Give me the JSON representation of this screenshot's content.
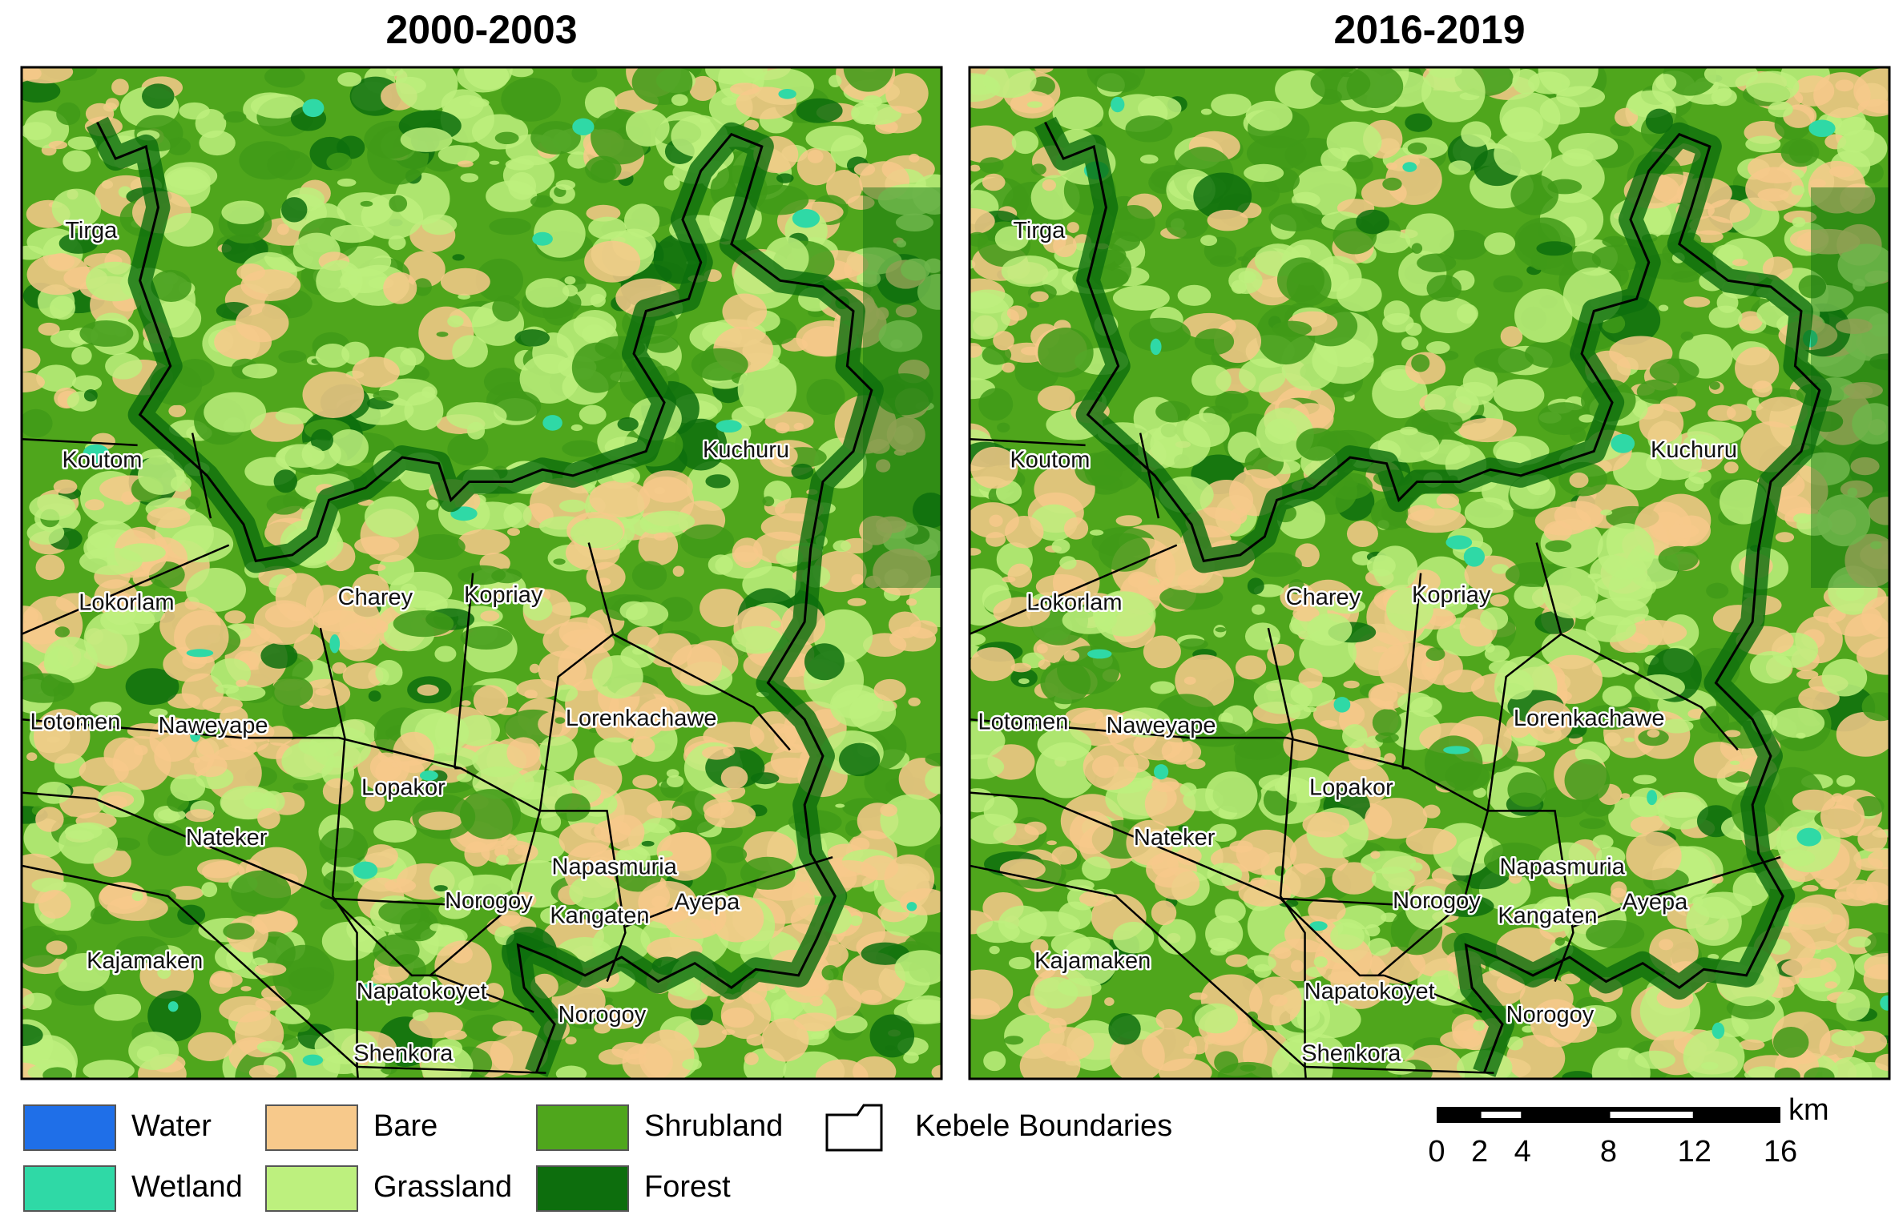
{
  "panels": [
    {
      "title": "2000-2003",
      "labels": [
        "Tirga",
        "Koutom",
        "Lokorlam",
        "Lotomen",
        "Naweyape",
        "Nateker",
        "Kajamaken",
        "Napatokoyet",
        "Shenkora",
        "Norogoy",
        "Norogoy",
        "Kangaten",
        "Napasmuria",
        "Ayepa",
        "Lopakor",
        "Lorenkachawe",
        "Charey",
        "Kopriay",
        "Kuchuru"
      ]
    },
    {
      "title": "2016-2019",
      "labels": [
        "Tirga",
        "Koutom",
        "Lokorlam",
        "Lotomen",
        "Naweyape",
        "Nateker",
        "Kajamaken",
        "Napatokoyet",
        "Shenkora",
        "Norogoy",
        "Norogoy",
        "Kangaten",
        "Napasmuria",
        "Ayepa",
        "Lopakor",
        "Lorenkachawe",
        "Charey",
        "Kopriay",
        "Kuchuru"
      ]
    }
  ],
  "legend": {
    "items": [
      {
        "label": "Water",
        "color": "#1f6fe8"
      },
      {
        "label": "Wetland",
        "color": "#2fd9a6"
      },
      {
        "label": "Bare",
        "color": "#f7c98b"
      },
      {
        "label": "Grassland",
        "color": "#bdf07e"
      },
      {
        "label": "Shrubland",
        "color": "#4fa61c"
      },
      {
        "label": "Forest",
        "color": "#0d6e0d"
      }
    ],
    "boundary_label": "Kebele Boundaries"
  },
  "scale_bar": {
    "unit": "km",
    "ticks": [
      0,
      2,
      4,
      8,
      12,
      16
    ]
  }
}
